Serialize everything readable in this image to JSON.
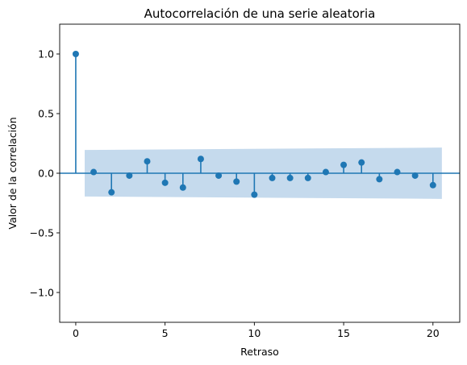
{
  "chart_data": {
    "type": "scatter",
    "title": "Autocorrelación de una serie aleatoria",
    "xlabel": "Retraso",
    "ylabel": "Valor de la correlación",
    "xlim": [
      -0.9,
      21.5
    ],
    "ylim": [
      -1.25,
      1.25
    ],
    "xticks": [
      0,
      5,
      10,
      15,
      20
    ],
    "yticks": [
      -1.0,
      -0.5,
      0.0,
      0.5,
      1.0
    ],
    "xtick_labels": [
      "0",
      "5",
      "10",
      "15",
      "20"
    ],
    "ytick_labels": [
      "−1.0",
      "−0.5",
      "0.0",
      "0.5",
      "1.0"
    ],
    "grid": false,
    "colors": {
      "series": "#1f77b4",
      "band": "#c5daed"
    },
    "series": [
      {
        "x": [
          0,
          1,
          2,
          3,
          4,
          5,
          6,
          7,
          8,
          9,
          10,
          11,
          12,
          13,
          14,
          15,
          16,
          17,
          18,
          19,
          20
        ],
        "values": [
          1.0,
          0.01,
          -0.16,
          -0.02,
          0.1,
          -0.08,
          -0.12,
          0.12,
          -0.02,
          -0.07,
          -0.18,
          -0.04,
          -0.04,
          -0.04,
          0.01,
          0.07,
          0.09,
          -0.05,
          0.01,
          -0.02,
          -0.1
        ]
      }
    ],
    "confidence_band": {
      "x": [
        0.5,
        20.5
      ],
      "upper": [
        0.195,
        0.215
      ],
      "lower": [
        -0.195,
        -0.215
      ]
    }
  }
}
